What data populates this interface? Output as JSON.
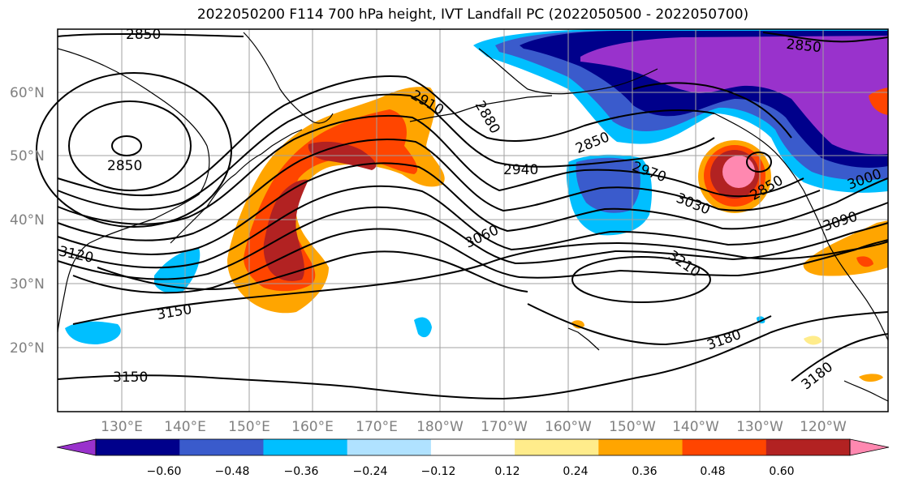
{
  "title": "2022050200 F114 700 hPa height, IVT Landfall PC (2022050500 - 2022050700)",
  "lat_labels": [
    "60°N",
    "50°N",
    "40°N",
    "30°N",
    "20°N"
  ],
  "lon_labels": [
    "130°E",
    "140°E",
    "150°E",
    "160°E",
    "170°E",
    "180°W",
    "170°W",
    "160°W",
    "150°W",
    "140°W",
    "130°W",
    "120°W"
  ],
  "contour_labels": [
    "2850",
    "2850",
    "2850",
    "2850",
    "2850",
    "2880",
    "2910",
    "2940",
    "2970",
    "3000",
    "3030",
    "3060",
    "3090",
    "3120",
    "3150",
    "3150",
    "3180",
    "3180",
    "3210"
  ],
  "colorbar": {
    "ticks": [
      "−0.60",
      "−0.48",
      "−0.36",
      "−0.24",
      "−0.12",
      "0.12",
      "0.24",
      "0.36",
      "0.48",
      "0.60"
    ],
    "colors": [
      "#9932CC",
      "#00008B",
      "#3A5BCC",
      "#00BFFF",
      "#B0E2FF",
      "#FFFFFF",
      "#FFEC8B",
      "#FFA500",
      "#FF4500",
      "#B22222",
      "#FF88B0"
    ]
  },
  "colors": {
    "grid": "#A0A0A0",
    "tick_text": "#808080"
  }
}
